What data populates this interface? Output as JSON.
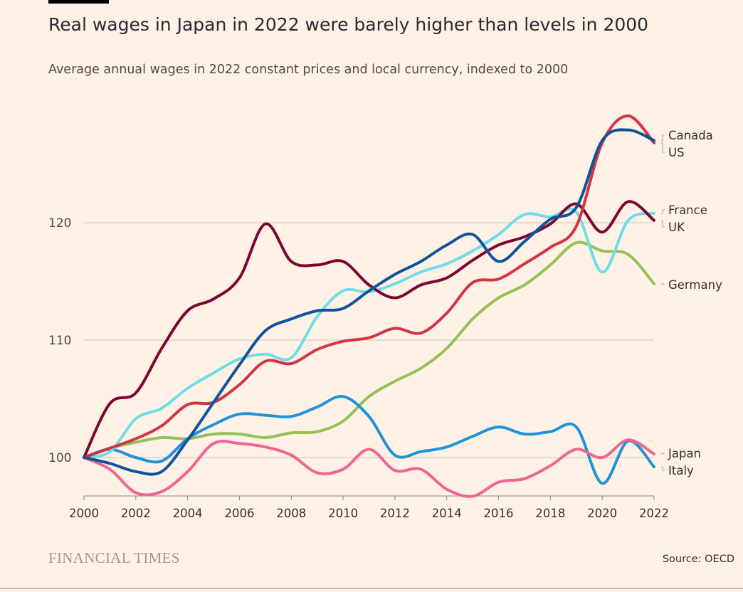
{
  "header": {
    "title": "Real wages in Japan in 2022 were barely higher than levels in 2000",
    "subtitle": "Average annual wages in 2022 constant prices and local currency, indexed to 2000"
  },
  "footer": {
    "logo": "FINANCIAL TIMES",
    "source": "Source: OECD"
  },
  "chart_data": {
    "type": "line",
    "title": "Real wages in Japan in 2022 were barely higher than levels in 2000",
    "subtitle": "Average annual wages in 2022 constant prices and local currency, indexed to 2000",
    "xlabel": "",
    "ylabel": "",
    "x": [
      2000,
      2001,
      2002,
      2003,
      2004,
      2005,
      2006,
      2007,
      2008,
      2009,
      2010,
      2011,
      2012,
      2013,
      2014,
      2015,
      2016,
      2017,
      2018,
      2019,
      2020,
      2021,
      2022
    ],
    "x_ticks": [
      "2000",
      "2002",
      "2004",
      "2006",
      "2008",
      "2010",
      "2012",
      "2014",
      "2016",
      "2018",
      "2020",
      "2022"
    ],
    "y_ticks": [
      "100",
      "110",
      "120"
    ],
    "ylim": [
      96.7,
      130
    ],
    "grid": true,
    "legend": "direct labels right",
    "series": [
      {
        "name": "Germany",
        "color": "#96c055",
        "values": [
          100,
          100.8,
          101.3,
          101.7,
          101.6,
          102.0,
          102.0,
          101.7,
          102.1,
          102.2,
          103.1,
          105.2,
          106.5,
          107.6,
          109.3,
          111.8,
          113.6,
          114.7,
          116.4,
          118.3,
          117.6,
          117.3,
          114.8
        ]
      },
      {
        "name": "Italy",
        "color": "#1f93d8",
        "values": [
          100,
          100.7,
          100.0,
          99.7,
          101.6,
          102.8,
          103.7,
          103.6,
          103.5,
          104.3,
          105.2,
          103.5,
          100.2,
          100.5,
          100.9,
          101.8,
          102.6,
          102.0,
          102.2,
          102.6,
          97.8,
          101.4,
          99.2
        ]
      },
      {
        "name": "Japan",
        "color": "#ee6591",
        "values": [
          100,
          99.0,
          97.0,
          97.1,
          98.8,
          101.2,
          101.2,
          100.9,
          100.2,
          98.7,
          99.0,
          100.7,
          98.9,
          99.0,
          97.3,
          96.7,
          97.9,
          98.2,
          99.3,
          100.7,
          100.0,
          101.5,
          100.3
        ]
      },
      {
        "name": "France",
        "color": "#6edde7",
        "values": [
          100,
          100.5,
          103.3,
          104.2,
          105.9,
          107.2,
          108.4,
          108.8,
          108.5,
          112.0,
          114.2,
          114.1,
          114.8,
          115.8,
          116.5,
          117.6,
          119.0,
          120.7,
          120.5,
          120.9,
          115.8,
          120.2,
          120.8
        ]
      },
      {
        "name": "UK",
        "color": "#7d0631",
        "values": [
          100,
          104.6,
          105.5,
          109.3,
          112.5,
          113.5,
          115.3,
          119.9,
          116.7,
          116.4,
          116.7,
          114.7,
          113.6,
          114.7,
          115.3,
          116.8,
          118.1,
          118.8,
          119.9,
          121.6,
          119.2,
          121.8,
          120.2
        ]
      },
      {
        "name": "US",
        "color": "#d13545",
        "values": [
          100,
          100.8,
          101.6,
          102.7,
          104.5,
          104.7,
          106.2,
          108.2,
          108.0,
          109.2,
          109.9,
          110.2,
          111.0,
          110.6,
          112.3,
          114.9,
          115.2,
          116.5,
          117.9,
          119.7,
          126.8,
          129.1,
          126.8
        ]
      },
      {
        "name": "Canada",
        "color": "#0f5499",
        "values": [
          100,
          99.5,
          98.8,
          98.8,
          101.5,
          104.7,
          107.9,
          110.8,
          111.8,
          112.5,
          112.7,
          114.2,
          115.6,
          116.7,
          118.1,
          119.0,
          116.7,
          118.4,
          120.3,
          121.3,
          127.0,
          127.9,
          127.0
        ]
      }
    ],
    "labels": [
      {
        "name": "Canada"
      },
      {
        "name": "US"
      },
      {
        "name": "France"
      },
      {
        "name": "UK"
      },
      {
        "name": "Germany"
      },
      {
        "name": "Japan"
      },
      {
        "name": "Italy"
      }
    ]
  }
}
